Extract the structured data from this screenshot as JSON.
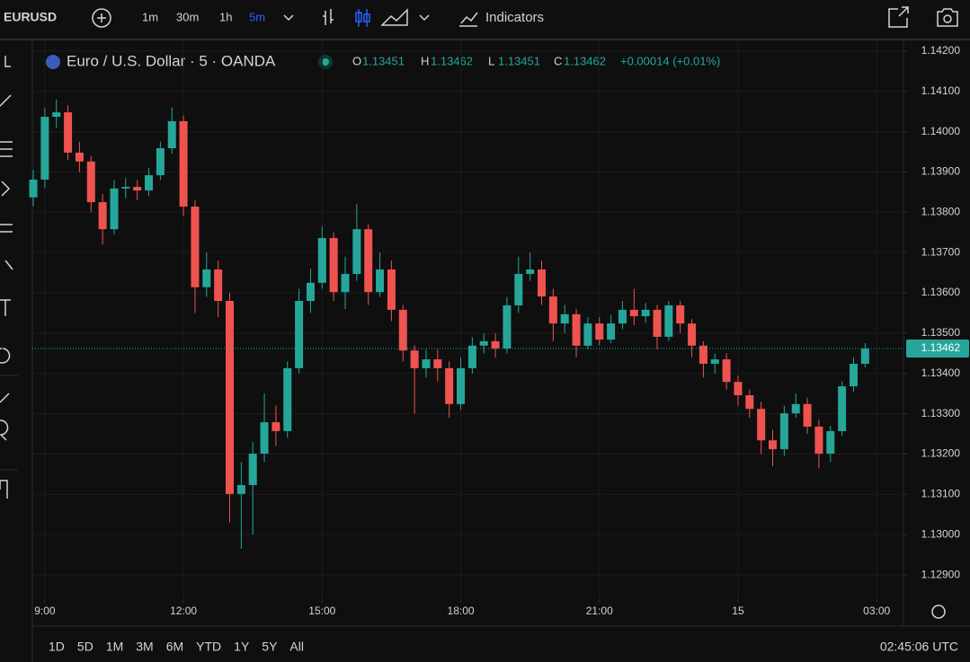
{
  "ui": {
    "toolbar": {
      "symbol": "EURUSD",
      "intervals": [
        "1m",
        "30m",
        "1h",
        "5m"
      ],
      "indicators": "Indicators"
    },
    "legend": {
      "title": "Euro / U.S. Dollar · 5 · OANDA",
      "ohlc": [
        {
          "key": "O",
          "value": "1.13451"
        },
        {
          "key": "H",
          "value": "1.13462"
        },
        {
          "key": "L",
          "value": "1.13451"
        },
        {
          "key": "C",
          "value": "1.13462"
        }
      ],
      "change": "+0.00014 (+0.01%)"
    },
    "bottom": {
      "ranges": [
        "1D",
        "5D",
        "1M",
        "3M",
        "6M",
        "YTD",
        "1Y",
        "5Y",
        "All"
      ],
      "clock": "02:45:06 UTC"
    }
  },
  "chart_data": {
    "type": "candlestick",
    "x": [
      8.75,
      9,
      9.25,
      9.5,
      9.75,
      10,
      10.25,
      10.5,
      10.75,
      11,
      11.25,
      11.5,
      11.75,
      12,
      12.25,
      12.5,
      12.75,
      13,
      13.25,
      13.5,
      13.75,
      14,
      14.25,
      14.5,
      14.75,
      15,
      15.25,
      15.5,
      15.75,
      16,
      16.25,
      16.5,
      16.75,
      17,
      17.25,
      17.5,
      17.75,
      18,
      18.25,
      18.5,
      18.75,
      19,
      19.25,
      19.5,
      19.75,
      20,
      20.25,
      20.5,
      20.75,
      21,
      21.25,
      21.5,
      21.75,
      22,
      22.25,
      22.5,
      22.75,
      23,
      23.25,
      23.5,
      23.75,
      24,
      24.25,
      24.5,
      24.75,
      25,
      25.25,
      25.5,
      25.75,
      26,
      26.25,
      26.5,
      26.75
    ],
    "open": [
      1.13837,
      1.13881,
      1.14037,
      1.14048,
      1.13948,
      1.13926,
      1.13825,
      1.13758,
      1.13859,
      1.13863,
      1.13854,
      1.13892,
      1.13959,
      1.14026,
      1.13814,
      1.13614,
      1.13658,
      1.1358,
      1.13101,
      1.13123,
      1.13201,
      1.13279,
      1.13257,
      1.13413,
      1.1358,
      1.13625,
      1.13736,
      1.13602,
      1.13647,
      1.13758,
      1.13602,
      1.13658,
      1.13558,
      1.13457,
      1.13413,
      1.13435,
      1.13413,
      1.13324,
      1.13413,
      1.13469,
      1.1348,
      1.13462,
      1.13569,
      1.13647,
      1.13658,
      1.13591,
      1.13524,
      1.13547,
      1.13469,
      1.13524,
      1.13484,
      1.13524,
      1.13558,
      1.13542,
      1.13558,
      1.13491,
      1.13569,
      1.13524,
      1.13469,
      1.13424,
      1.13435,
      1.13379,
      1.13346,
      1.13312,
      1.13234,
      1.13212,
      1.13301,
      1.13324,
      1.13268,
      1.13201,
      1.13257,
      1.13368,
      1.13424
    ],
    "high": [
      1.13905,
      1.1406,
      1.1408,
      1.14065,
      1.13975,
      1.1394,
      1.13845,
      1.1388,
      1.13885,
      1.1388,
      1.1391,
      1.13975,
      1.1406,
      1.1404,
      1.1383,
      1.137,
      1.1368,
      1.136,
      1.1318,
      1.1323,
      1.1335,
      1.1332,
      1.1343,
      1.1361,
      1.1366,
      1.13765,
      1.1375,
      1.1369,
      1.1382,
      1.1377,
      1.137,
      1.1368,
      1.1357,
      1.1347,
      1.1346,
      1.1346,
      1.1343,
      1.1344,
      1.1349,
      1.135,
      1.135,
      1.1359,
      1.1369,
      1.137,
      1.1368,
      1.1361,
      1.1357,
      1.1356,
      1.1354,
      1.1354,
      1.13545,
      1.1358,
      1.1361,
      1.13575,
      1.1357,
      1.1358,
      1.1358,
      1.13535,
      1.1348,
      1.1345,
      1.1345,
      1.13395,
      1.1336,
      1.1333,
      1.1326,
      1.1332,
      1.1335,
      1.1334,
      1.13285,
      1.1327,
      1.1338,
      1.1344,
      1.13475
    ],
    "low": [
      1.13815,
      1.1386,
      1.1401,
      1.1393,
      1.139,
      1.138,
      1.1372,
      1.13745,
      1.13835,
      1.1383,
      1.1384,
      1.1388,
      1.13945,
      1.1379,
      1.1355,
      1.1359,
      1.1354,
      1.1303,
      1.12965,
      1.13,
      1.1318,
      1.1322,
      1.1324,
      1.134,
      1.1355,
      1.1361,
      1.1358,
      1.1356,
      1.1363,
      1.1357,
      1.1359,
      1.1353,
      1.1343,
      1.133,
      1.1339,
      1.1338,
      1.1329,
      1.1331,
      1.134,
      1.1345,
      1.1344,
      1.1345,
      1.1355,
      1.1363,
      1.1357,
      1.1348,
      1.135,
      1.1344,
      1.1346,
      1.1347,
      1.13475,
      1.1351,
      1.1352,
      1.13525,
      1.1346,
      1.1348,
      1.135,
      1.1344,
      1.1339,
      1.134,
      1.1336,
      1.1332,
      1.1329,
      1.132,
      1.1317,
      1.13195,
      1.1329,
      1.1325,
      1.13165,
      1.1318,
      1.13245,
      1.13355,
      1.13415
    ],
    "close": [
      1.13881,
      1.14037,
      1.14048,
      1.13948,
      1.13926,
      1.13825,
      1.13758,
      1.13859,
      1.13863,
      1.13854,
      1.13892,
      1.13959,
      1.14026,
      1.13814,
      1.13614,
      1.13658,
      1.1358,
      1.13101,
      1.13123,
      1.13201,
      1.13279,
      1.13257,
      1.13413,
      1.1358,
      1.13625,
      1.13736,
      1.13602,
      1.13647,
      1.13758,
      1.13602,
      1.13658,
      1.13558,
      1.13457,
      1.13413,
      1.13435,
      1.13413,
      1.13324,
      1.13413,
      1.13469,
      1.1348,
      1.13462,
      1.13569,
      1.13647,
      1.13658,
      1.13591,
      1.13524,
      1.13547,
      1.13469,
      1.13524,
      1.13484,
      1.13524,
      1.13558,
      1.13542,
      1.13558,
      1.13491,
      1.13569,
      1.13524,
      1.13469,
      1.13424,
      1.13435,
      1.13379,
      1.13346,
      1.13312,
      1.13234,
      1.13212,
      1.13301,
      1.13324,
      1.13268,
      1.13201,
      1.13257,
      1.13368,
      1.13424,
      1.13462
    ],
    "up_color": "#26a69a",
    "down_color": "#ef5350",
    "xlim": [
      8.73,
      27.58
    ],
    "xticks": [
      {
        "value": 9,
        "label": "9:00"
      },
      {
        "value": 12,
        "label": "12:00"
      },
      {
        "value": 15,
        "label": "15:00"
      },
      {
        "value": 18,
        "label": "18:00"
      },
      {
        "value": 21,
        "label": "21:00"
      },
      {
        "value": 24,
        "label": "15"
      },
      {
        "value": 27,
        "label": "03:00"
      }
    ],
    "ylim": [
      1.1284,
      1.14222
    ],
    "yticks": [
      {
        "value": 1.142,
        "label": "1.14200"
      },
      {
        "value": 1.141,
        "label": "1.14100"
      },
      {
        "value": 1.14,
        "label": "1.14000"
      },
      {
        "value": 1.139,
        "label": "1.13900"
      },
      {
        "value": 1.138,
        "label": "1.13800"
      },
      {
        "value": 1.137,
        "label": "1.13700"
      },
      {
        "value": 1.136,
        "label": "1.13600"
      },
      {
        "value": 1.135,
        "label": "1.13500"
      },
      {
        "value": 1.134,
        "label": "1.13400"
      },
      {
        "value": 1.133,
        "label": "1.13300"
      },
      {
        "value": 1.132,
        "label": "1.13200"
      },
      {
        "value": 1.131,
        "label": "1.13100"
      },
      {
        "value": 1.13,
        "label": "1.13000"
      },
      {
        "value": 1.129,
        "label": "1.12900"
      }
    ],
    "grid": true,
    "last_price": {
      "value": 1.13462,
      "label": "1.13462"
    }
  }
}
